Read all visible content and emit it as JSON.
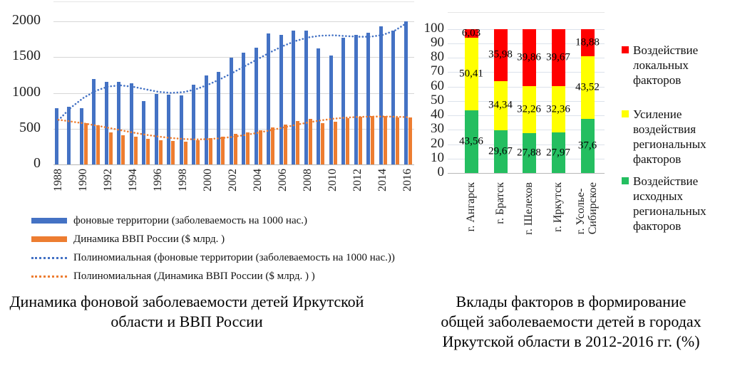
{
  "captions": {
    "left": "Динамика фоновой заболеваемости детей Иркутской\nобласти и ВВП России",
    "right": "Вклады факторов в формирование\nобщей заболеваемости детей в городах\nИркутской области в 2012-2016 гг. (%)"
  },
  "colors": {
    "blue": "#4472C4",
    "orange": "#ED7D31",
    "red": "#FF0000",
    "yellow": "#FFFF00",
    "green": "#24BE60",
    "grid_left": "#d6d6d6",
    "grid_right": "#dce2eb",
    "axis_line": "#b7b7b7",
    "plot_top_border": "#e6e6e6"
  },
  "chart_data": [
    {
      "type": "bar",
      "title": "",
      "categories": [
        "1988",
        "1989",
        "1990",
        "1991",
        "1992",
        "1993",
        "1994",
        "1995",
        "1996",
        "1997",
        "1998",
        "1999",
        "2000",
        "2001",
        "2002",
        "2003",
        "2004",
        "2005",
        "2006",
        "2007",
        "2008",
        "2009",
        "2010",
        "2011",
        "2012",
        "2013",
        "2014",
        "2015",
        "2016"
      ],
      "x_tick_step": 2,
      "ylim": [
        0,
        2000
      ],
      "y_ticks": [
        0,
        500,
        1000,
        1500,
        2000
      ],
      "grid": true,
      "legend_position": "bottom",
      "series": [
        {
          "name": "фоновые территории (заболеваемость на 1000 нас.)",
          "kind": "bar",
          "color": "#4472C4",
          "values": [
            790,
            805,
            790,
            1190,
            1155,
            1150,
            1130,
            890,
            990,
            975,
            965,
            1115,
            1245,
            1290,
            1490,
            1560,
            1630,
            1835,
            1815,
            1870,
            1875,
            1625,
            1520,
            1775,
            1815,
            1840,
            1930,
            1875,
            2000
          ]
        },
        {
          "name": "Динамика ВВП России ($ млрд. )",
          "kind": "bar",
          "color": "#ED7D31",
          "values": [
            null,
            null,
            575,
            550,
            445,
            410,
            385,
            355,
            340,
            330,
            320,
            340,
            365,
            390,
            430,
            450,
            475,
            520,
            560,
            605,
            635,
            575,
            600,
            650,
            665,
            675,
            675,
            660,
            660
          ]
        },
        {
          "name": "Полиномиальная (фоновые территории (заболеваемость на 1000 нас.))",
          "kind": "dotted-line",
          "color": "#4472C4",
          "values": [
            620,
            795,
            930,
            1030,
            1090,
            1105,
            1085,
            1050,
            1015,
            1000,
            1010,
            1050,
            1115,
            1195,
            1285,
            1380,
            1475,
            1570,
            1655,
            1725,
            1775,
            1800,
            1805,
            1795,
            1785,
            1785,
            1810,
            1875,
            1985
          ]
        },
        {
          "name": "Полиномиальная (Динамика ВВП России ($ млрд. ) )",
          "kind": "dotted-line",
          "color": "#ED7D31",
          "values": [
            625,
            600,
            575,
            545,
            512,
            478,
            445,
            415,
            390,
            370,
            356,
            350,
            354,
            366,
            386,
            412,
            443,
            478,
            515,
            552,
            586,
            615,
            638,
            654,
            664,
            669,
            670,
            667,
            661
          ]
        }
      ]
    },
    {
      "type": "bar",
      "subtype": "stacked-100",
      "title": "",
      "categories": [
        "г. Ангарск",
        "г. Братск",
        "г. Шелехов",
        "г. Иркутск",
        "г. Усолье-\nСибирское"
      ],
      "ylim": [
        0,
        100
      ],
      "y_ticks": [
        0,
        10,
        20,
        30,
        40,
        50,
        60,
        70,
        80,
        90,
        100
      ],
      "grid": true,
      "legend_position": "right",
      "series": [
        {
          "name": "Воздействие исходных региональных факторов",
          "color": "#24BE60",
          "values": [
            43.56,
            29.67,
            27.88,
            27.97,
            37.6
          ],
          "labels": [
            "43,56",
            "29,67",
            "27,88",
            "27,97",
            "37,6"
          ]
        },
        {
          "name": "Усиление воздействия региональных факторов",
          "color": "#FFFF00",
          "values": [
            50.41,
            34.34,
            32.26,
            32.36,
            43.52
          ],
          "labels": [
            "50,41",
            "34,34",
            "32,26",
            "32,36",
            "43,52"
          ]
        },
        {
          "name": "Воздействие локальных факторов",
          "color": "#FF0000",
          "values": [
            6.03,
            35.98,
            39.86,
            39.67,
            18.88
          ],
          "labels": [
            "6,03",
            "35,98",
            "39,86",
            "39,67",
            "18,88"
          ]
        }
      ],
      "legend": [
        {
          "color": "#FF0000",
          "label": "Воздействие\nлокальных\nфакторов"
        },
        {
          "color": "#FFFF00",
          "label": "Усиление\nвоздействия\nрегиональных\nфакторов"
        },
        {
          "color": "#24BE60",
          "label": "Воздействие\nисходных\nрегиональных\nфакторов"
        }
      ]
    }
  ]
}
